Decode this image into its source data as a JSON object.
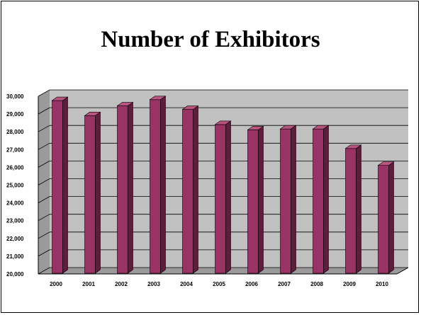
{
  "chart_data": {
    "type": "bar",
    "title": "Number of Exhibitors",
    "xlabel": "",
    "ylabel": "",
    "categories": [
      "2000",
      "2001",
      "2002",
      "2003",
      "2004",
      "2005",
      "2006",
      "2007",
      "2008",
      "2009",
      "2010"
    ],
    "values": [
      29800,
      28950,
      29500,
      29850,
      29300,
      28450,
      28150,
      28200,
      28200,
      27100,
      26150
    ],
    "ylim": [
      20000,
      30000
    ],
    "ytick_values": [
      20000,
      21000,
      22000,
      23000,
      24000,
      25000,
      26000,
      27000,
      28000,
      29000,
      30000
    ],
    "ytick_labels": [
      "20,000",
      "21,000",
      "22,000",
      "23,000",
      "24,000",
      "25,000",
      "26,000",
      "27,000",
      "28,000",
      "29,000",
      "30,000"
    ],
    "grid": true,
    "style": "3d-bar",
    "colors": {
      "bar_front": "#993366",
      "bar_side": "#5e1d3d",
      "bar_top": "#b8547f",
      "wall": "#c0c0c0",
      "floor": "#9a9a9a",
      "gridline": "#000000"
    }
  }
}
